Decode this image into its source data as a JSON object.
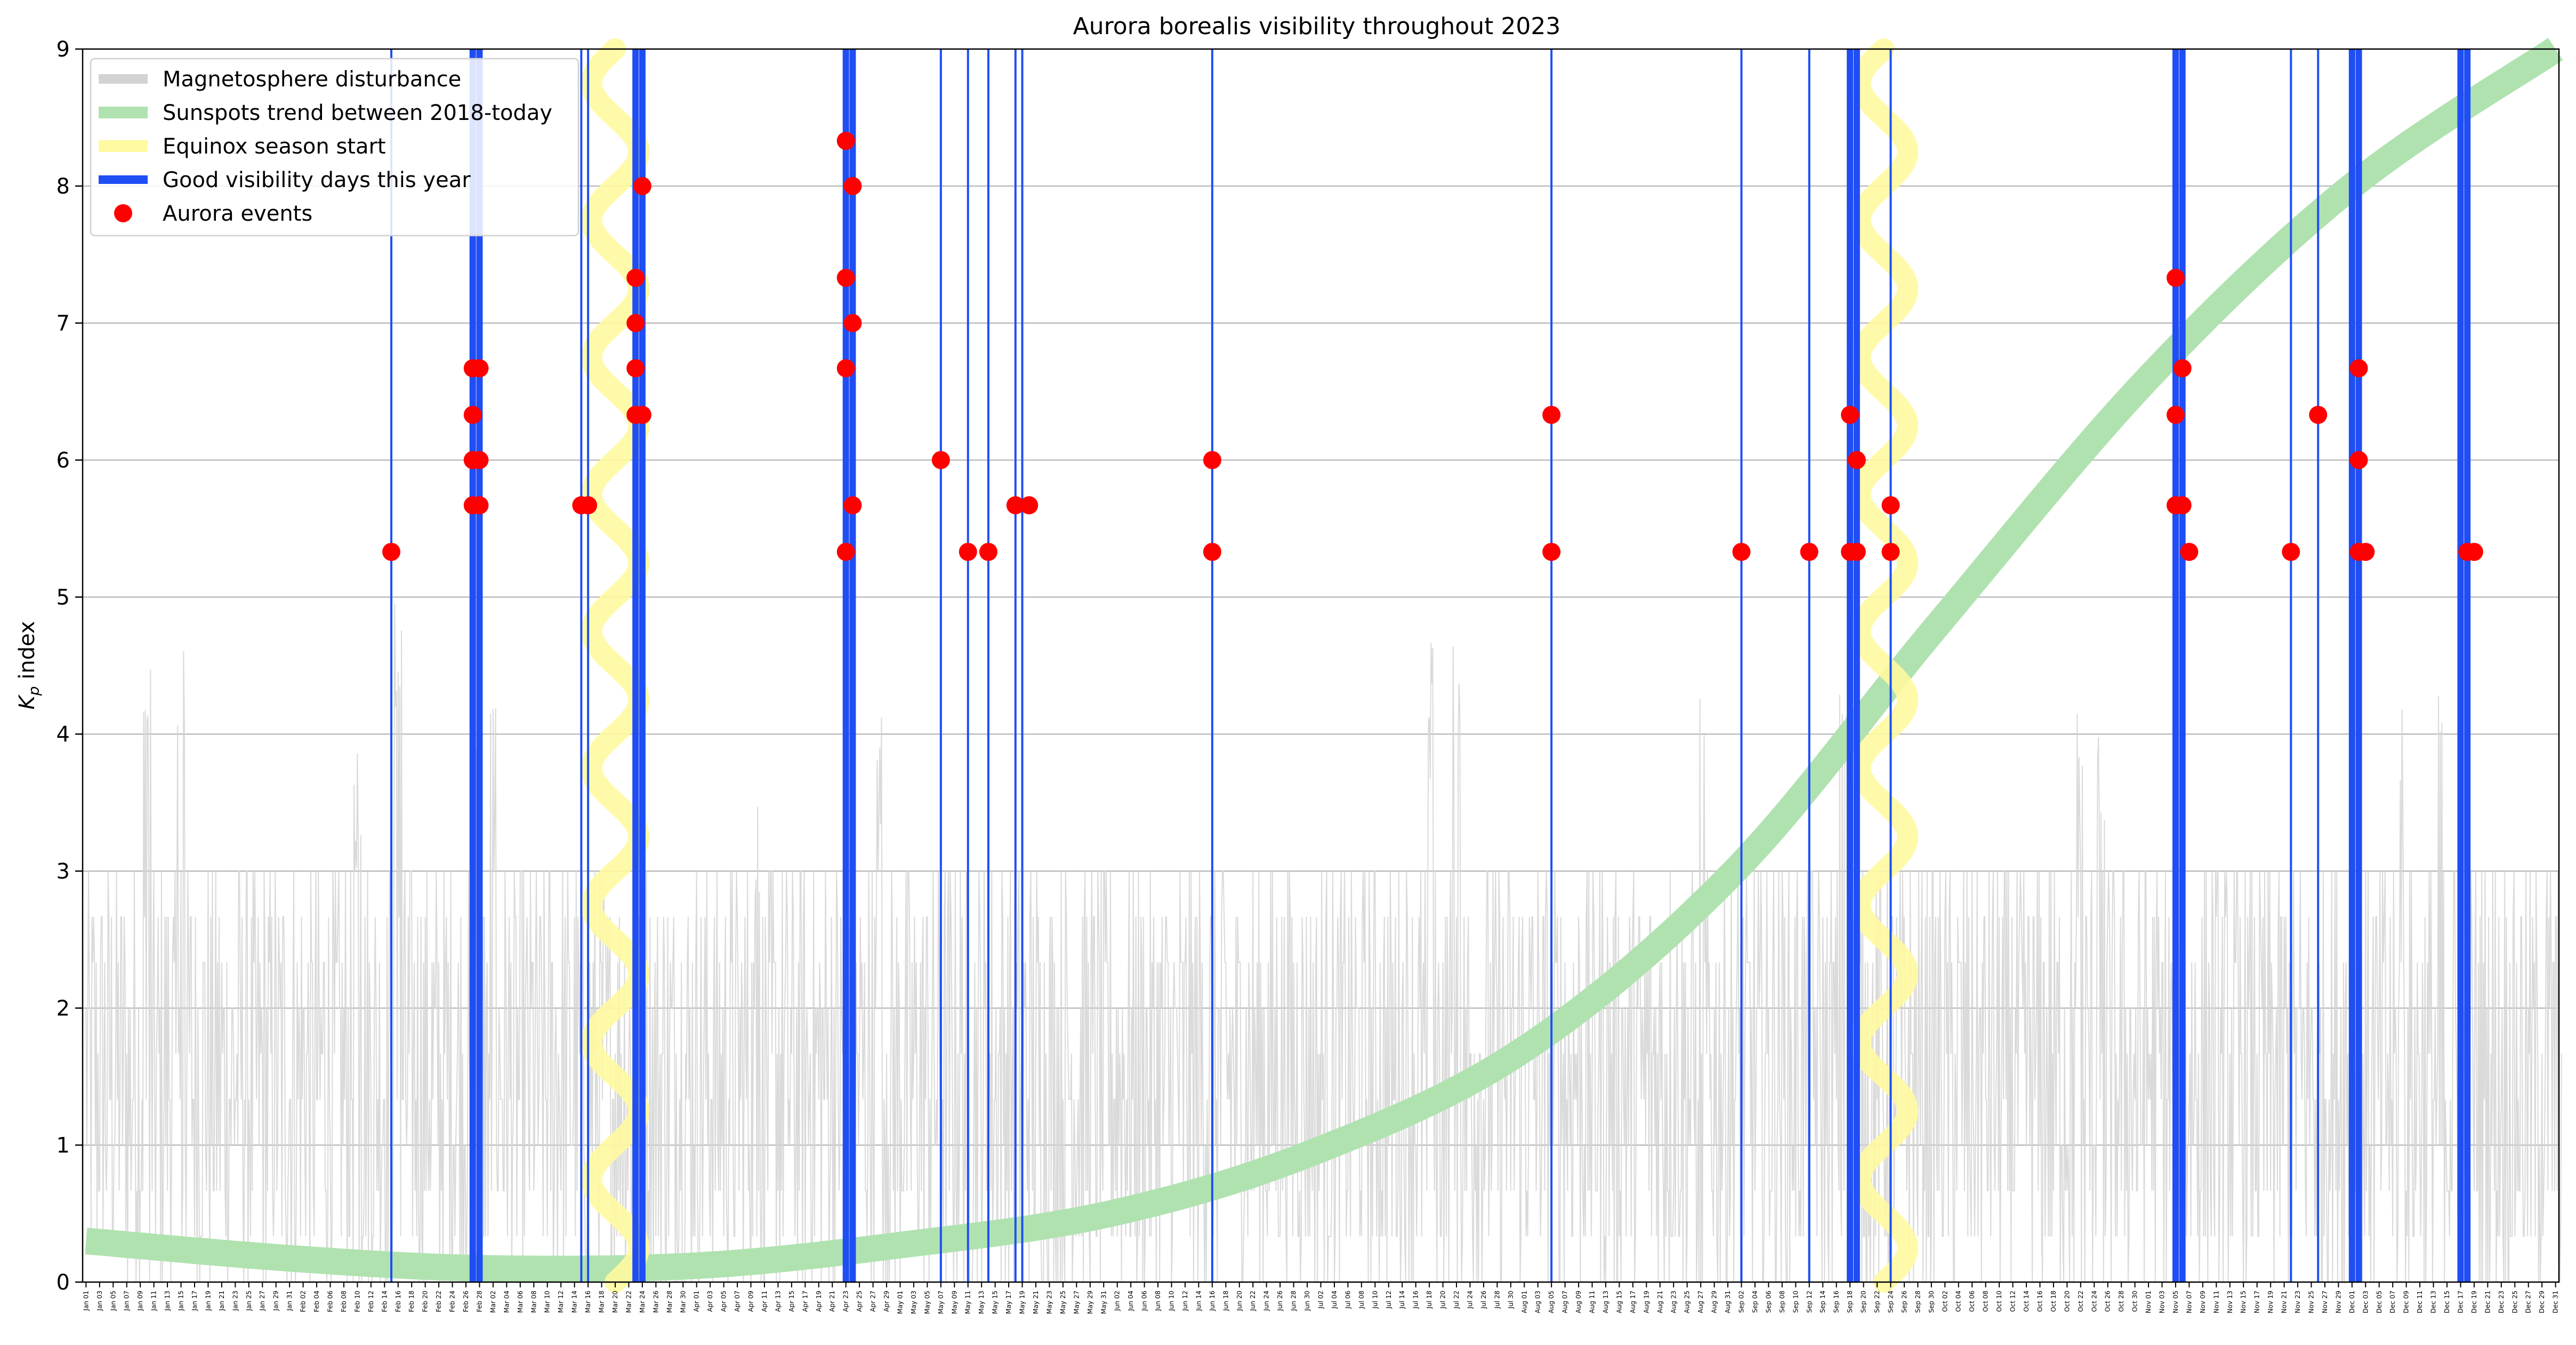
{
  "chart_data": {
    "type": "line",
    "title": "Aurora borealis visibility throughout 2023",
    "ylabel_main": "K",
    "ylabel_sub": "p",
    "ylabel_rest": " index",
    "ylim": [
      0,
      9
    ],
    "yticks": [
      0,
      1,
      2,
      3,
      4,
      5,
      6,
      7,
      8,
      9
    ],
    "x_range_days": [
      -0.5,
      364.5
    ],
    "xtick_labels": [
      "Jan 01",
      "Jan 03",
      "Jan 05",
      "Jan 07",
      "Jan 09",
      "Jan 11",
      "Jan 13",
      "Jan 15",
      "Jan 17",
      "Jan 19",
      "Jan 21",
      "Jan 23",
      "Jan 25",
      "Jan 27",
      "Jan 29",
      "Jan 31",
      "Feb 02",
      "Feb 04",
      "Feb 06",
      "Feb 08",
      "Feb 10",
      "Feb 12",
      "Feb 14",
      "Feb 16",
      "Feb 18",
      "Feb 20",
      "Feb 22",
      "Feb 24",
      "Feb 26",
      "Feb 28",
      "Mar 02",
      "Mar 04",
      "Mar 06",
      "Mar 08",
      "Mar 10",
      "Mar 12",
      "Mar 14",
      "Mar 16",
      "Mar 18",
      "Mar 20",
      "Mar 22",
      "Mar 24",
      "Mar 26",
      "Mar 28",
      "Mar 30",
      "Apr 01",
      "Apr 03",
      "Apr 05",
      "Apr 07",
      "Apr 09",
      "Apr 11",
      "Apr 13",
      "Apr 15",
      "Apr 17",
      "Apr 19",
      "Apr 21",
      "Apr 23",
      "Apr 25",
      "Apr 27",
      "Apr 29",
      "May 01",
      "May 03",
      "May 05",
      "May 07",
      "May 09",
      "May 11",
      "May 13",
      "May 15",
      "May 17",
      "May 19",
      "May 21",
      "May 23",
      "May 25",
      "May 27",
      "May 29",
      "May 31",
      "Jun 02",
      "Jun 04",
      "Jun 06",
      "Jun 08",
      "Jun 10",
      "Jun 12",
      "Jun 14",
      "Jun 16",
      "Jun 18",
      "Jun 20",
      "Jun 22",
      "Jun 24",
      "Jun 26",
      "Jun 28",
      "Jun 30",
      "Jul 02",
      "Jul 04",
      "Jul 06",
      "Jul 08",
      "Jul 10",
      "Jul 12",
      "Jul 14",
      "Jul 16",
      "Jul 18",
      "Jul 20",
      "Jul 22",
      "Jul 24",
      "Jul 26",
      "Jul 28",
      "Jul 30",
      "Aug 01",
      "Aug 03",
      "Aug 05",
      "Aug 07",
      "Aug 09",
      "Aug 11",
      "Aug 13",
      "Aug 15",
      "Aug 17",
      "Aug 19",
      "Aug 21",
      "Aug 23",
      "Aug 25",
      "Aug 27",
      "Aug 29",
      "Aug 31",
      "Sep 02",
      "Sep 04",
      "Sep 06",
      "Sep 08",
      "Sep 10",
      "Sep 12",
      "Sep 14",
      "Sep 16",
      "Sep 18",
      "Sep 20",
      "Sep 22",
      "Sep 24",
      "Sep 26",
      "Sep 28",
      "Sep 30",
      "Oct 02",
      "Oct 04",
      "Oct 06",
      "Oct 08",
      "Oct 10",
      "Oct 12",
      "Oct 14",
      "Oct 16",
      "Oct 18",
      "Oct 20",
      "Oct 22",
      "Oct 24",
      "Oct 26",
      "Oct 28",
      "Oct 30",
      "Nov 01",
      "Nov 03",
      "Nov 05",
      "Nov 07",
      "Nov 09",
      "Nov 11",
      "Nov 13",
      "Nov 15",
      "Nov 17",
      "Nov 19",
      "Nov 21",
      "Nov 23",
      "Nov 25",
      "Nov 27",
      "Nov 29",
      "Dec 01",
      "Dec 03",
      "Dec 05",
      "Dec 07",
      "Dec 09",
      "Dec 11",
      "Dec 13",
      "Dec 15",
      "Dec 17",
      "Dec 19",
      "Dec 21",
      "Dec 23",
      "Dec 25",
      "Dec 27",
      "Dec 29",
      "Dec 31"
    ],
    "grid": "horizontal",
    "legend_position": "top-left",
    "legend": [
      "Magnetosphere disturbance",
      "Sunspots trend between 2018-today",
      "Equinox season start",
      "Good visibility days this year",
      "Aurora events"
    ],
    "colors": {
      "magnetosphere": "#d3d3d3",
      "sunspots": "#b0e2b0",
      "equinox": "#fffaa0",
      "visibility": "#1f4ef5",
      "aurora": "#ff0000",
      "grid": "#b0b0b0"
    },
    "series": [
      {
        "name": "Sunspots trend between 2018-today",
        "kind": "trend",
        "points": [
          [
            "Jan 01",
            0.3
          ],
          [
            "Feb 01",
            0.17
          ],
          [
            "Mar 01",
            0.1
          ],
          [
            "Apr 01",
            0.12
          ],
          [
            "May 01",
            0.27
          ],
          [
            "Jun 01",
            0.5
          ],
          [
            "Jul 01",
            0.95
          ],
          [
            "Aug 01",
            1.7
          ],
          [
            "Sep 01",
            3.0
          ],
          [
            "Oct 01",
            4.8
          ],
          [
            "Nov 01",
            6.6
          ],
          [
            "Dec 01",
            8.0
          ],
          [
            "Dec 31",
            9.0
          ]
        ]
      },
      {
        "name": "Equinox season start",
        "kind": "wave",
        "centers": [
          "Mar 20",
          "Sep 23"
        ],
        "amplitude_days": 3.5,
        "wavelength_kp": 1.0,
        "range": [
          0,
          9
        ]
      },
      {
        "name": "Good visibility days this year",
        "kind": "vertical-lines",
        "days": [
          "Feb 15",
          "Feb 27",
          "Feb 28",
          "Mar 15",
          "Mar 16",
          "Mar 23",
          "Mar 24",
          "Apr 23",
          "Apr 24",
          "May 07",
          "May 11",
          "May 14",
          "May 18",
          "May 19",
          "Jun 16",
          "Aug 05",
          "Sep 02",
          "Sep 12",
          "Sep 18",
          "Sep 19",
          "Sep 24",
          "Nov 05",
          "Nov 06",
          "Nov 22",
          "Nov 26",
          "Dec 01",
          "Dec 02",
          "Dec 17",
          "Dec 18"
        ],
        "thick_days": [
          "Feb 27",
          "Feb 28",
          "Mar 23",
          "Mar 24",
          "Apr 23",
          "Apr 24",
          "Sep 18",
          "Sep 19",
          "Nov 05",
          "Nov 06",
          "Dec 01",
          "Dec 02",
          "Dec 17",
          "Dec 18"
        ]
      },
      {
        "name": "Aurora events",
        "kind": "scatter",
        "points": [
          [
            "Feb 15",
            5.33
          ],
          [
            "Feb 27",
            5.67
          ],
          [
            "Feb 27",
            6.0
          ],
          [
            "Feb 27",
            6.33
          ],
          [
            "Feb 27",
            6.67
          ],
          [
            "Feb 28",
            5.67
          ],
          [
            "Feb 28",
            6.0
          ],
          [
            "Feb 28",
            6.67
          ],
          [
            "Mar 15",
            5.67
          ],
          [
            "Mar 16",
            5.67
          ],
          [
            "Mar 23",
            6.33
          ],
          [
            "Mar 23",
            6.67
          ],
          [
            "Mar 23",
            7.0
          ],
          [
            "Mar 23",
            7.33
          ],
          [
            "Mar 24",
            6.33
          ],
          [
            "Mar 24",
            8.0
          ],
          [
            "Apr 23",
            5.33
          ],
          [
            "Apr 23",
            6.67
          ],
          [
            "Apr 23",
            7.33
          ],
          [
            "Apr 23",
            8.33
          ],
          [
            "Apr 24",
            5.67
          ],
          [
            "Apr 24",
            7.0
          ],
          [
            "Apr 24",
            8.0
          ],
          [
            "May 07",
            6.0
          ],
          [
            "May 11",
            5.33
          ],
          [
            "May 14",
            5.33
          ],
          [
            "May 18",
            5.67
          ],
          [
            "May 20",
            5.67
          ],
          [
            "Jun 16",
            5.33
          ],
          [
            "Jun 16",
            6.0
          ],
          [
            "Aug 05",
            5.33
          ],
          [
            "Aug 05",
            6.33
          ],
          [
            "Sep 02",
            5.33
          ],
          [
            "Sep 12",
            5.33
          ],
          [
            "Sep 18",
            5.33
          ],
          [
            "Sep 18",
            6.33
          ],
          [
            "Sep 19",
            5.33
          ],
          [
            "Sep 19",
            6.0
          ],
          [
            "Sep 24",
            5.33
          ],
          [
            "Sep 24",
            5.67
          ],
          [
            "Nov 05",
            5.67
          ],
          [
            "Nov 05",
            6.33
          ],
          [
            "Nov 05",
            7.33
          ],
          [
            "Nov 06",
            5.67
          ],
          [
            "Nov 06",
            6.67
          ],
          [
            "Nov 07",
            5.33
          ],
          [
            "Nov 22",
            5.33
          ],
          [
            "Nov 26",
            6.33
          ],
          [
            "Dec 02",
            5.33
          ],
          [
            "Dec 02",
            6.0
          ],
          [
            "Dec 02",
            6.67
          ],
          [
            "Dec 03",
            5.33
          ],
          [
            "Dec 18",
            5.33
          ],
          [
            "Dec 19",
            5.33
          ]
        ]
      },
      {
        "name": "Magnetosphere disturbance",
        "kind": "daily-noise",
        "samples_per_day": 8,
        "typical_range": [
          0,
          5
        ],
        "active_windows": [
          [
            "Jan 10",
            4.7
          ],
          [
            "Jan 15",
            5.0
          ],
          [
            "Feb 10",
            4.0
          ],
          [
            "Feb 16",
            5.0
          ],
          [
            "Feb 27",
            4.7
          ],
          [
            "Mar 02",
            4.3
          ],
          [
            "Apr 10",
            3.7
          ],
          [
            "Apr 28",
            4.3
          ],
          [
            "Jul 18",
            4.7
          ],
          [
            "Jul 22",
            4.7
          ],
          [
            "Aug 27",
            4.3
          ],
          [
            "Sep 17",
            4.7
          ],
          [
            "Oct 22",
            4.3
          ],
          [
            "Oct 25",
            4.0
          ],
          [
            "Dec 08",
            4.3
          ],
          [
            "Dec 14",
            4.3
          ]
        ]
      }
    ]
  }
}
